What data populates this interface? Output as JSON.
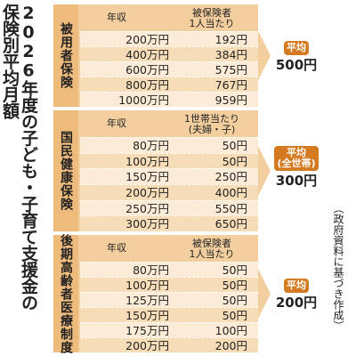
{
  "title": [
    "2026年度の子ども・子育て支援金の",
    "保険別平均月額"
  ],
  "note": "（政府資料に基づき作成）",
  "sections": [
    {
      "label": "被用者保険",
      "headers": [
        [
          "年収"
        ],
        [
          "被保険者",
          "1人当たり"
        ]
      ],
      "rows": [
        [
          "200万円",
          "192円"
        ],
        [
          "400万円",
          "384円"
        ],
        [
          "600万円",
          "575円"
        ],
        [
          "800万円",
          "767円"
        ],
        [
          "1000万円",
          "959円"
        ]
      ],
      "average": {
        "label": [
          "平均"
        ],
        "value": "500円"
      }
    },
    {
      "label": "国民健康保険",
      "headers": [
        [
          "年収"
        ],
        [
          "1世帯当たり",
          "(夫婦・子)"
        ]
      ],
      "rows": [
        [
          "80万円",
          "50円"
        ],
        [
          "100万円",
          "50円"
        ],
        [
          "150万円",
          "250円"
        ],
        [
          "200万円",
          "400円"
        ],
        [
          "250万円",
          "550円"
        ],
        [
          "300万円",
          "650円"
        ]
      ],
      "average": {
        "label": [
          "平均",
          "(全世帯)"
        ],
        "value": "300円"
      }
    },
    {
      "label": "後期高齢者医療制度",
      "headers": [
        [
          "年収"
        ],
        [
          "被保険者",
          "1人当たり"
        ]
      ],
      "rows": [
        [
          "80万円",
          "50円"
        ],
        [
          "100万円",
          "50円"
        ],
        [
          "125万円",
          "50円"
        ],
        [
          "150万円",
          "50円"
        ],
        [
          "175万円",
          "100円"
        ],
        [
          "200万円",
          "200円"
        ]
      ],
      "average": {
        "label": [
          "平均"
        ],
        "value": "200円"
      }
    }
  ]
}
